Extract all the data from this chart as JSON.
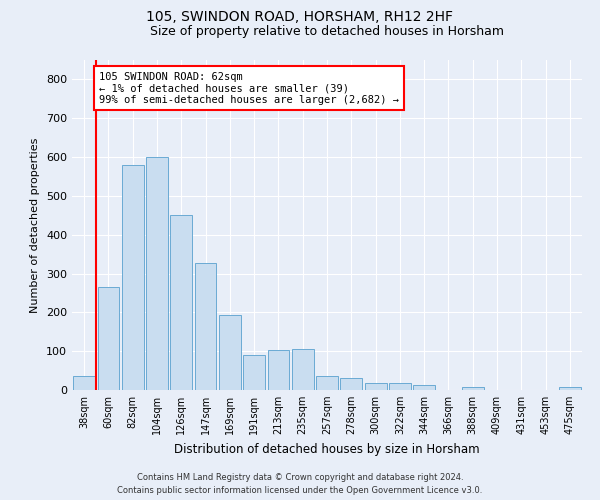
{
  "title": "105, SWINDON ROAD, HORSHAM, RH12 2HF",
  "subtitle": "Size of property relative to detached houses in Horsham",
  "xlabel": "Distribution of detached houses by size in Horsham",
  "ylabel": "Number of detached properties",
  "footer_line1": "Contains HM Land Registry data © Crown copyright and database right 2024.",
  "footer_line2": "Contains public sector information licensed under the Open Government Licence v3.0.",
  "annotation_line1": "105 SWINDON ROAD: 62sqm",
  "annotation_line2": "← 1% of detached houses are smaller (39)",
  "annotation_line3": "99% of semi-detached houses are larger (2,682) →",
  "bar_color": "#c9ddf0",
  "bar_edge_color": "#6aaad4",
  "red_line_x": 0.5,
  "categories": [
    "38sqm",
    "60sqm",
    "82sqm",
    "104sqm",
    "126sqm",
    "147sqm",
    "169sqm",
    "191sqm",
    "213sqm",
    "235sqm",
    "257sqm",
    "278sqm",
    "300sqm",
    "322sqm",
    "344sqm",
    "366sqm",
    "388sqm",
    "409sqm",
    "431sqm",
    "453sqm",
    "475sqm"
  ],
  "values": [
    37,
    265,
    580,
    600,
    450,
    328,
    193,
    90,
    103,
    105,
    35,
    32,
    18,
    17,
    13,
    0,
    8,
    0,
    0,
    0,
    8
  ],
  "ylim": [
    0,
    850
  ],
  "yticks": [
    0,
    100,
    200,
    300,
    400,
    500,
    600,
    700,
    800
  ],
  "background_color": "#e8eef8",
  "plot_bg_color": "#e8eef8",
  "grid_color": "#ffffff",
  "title_fontsize": 10,
  "subtitle_fontsize": 9
}
